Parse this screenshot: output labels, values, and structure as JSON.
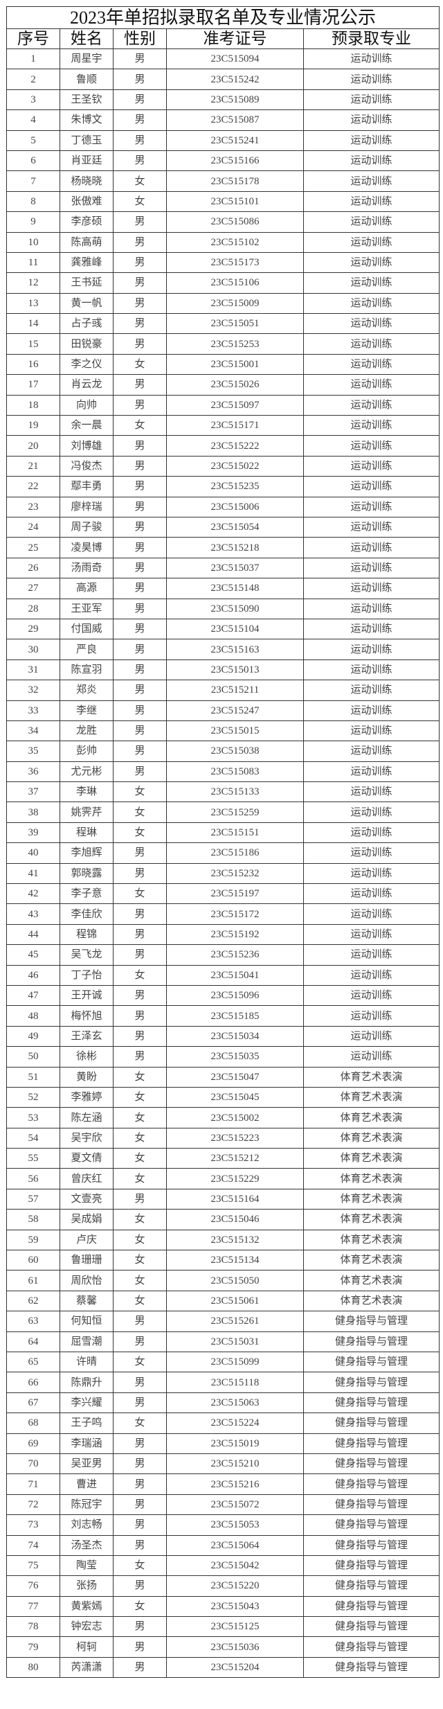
{
  "title": "2023年单招拟录取名单及专业情况公示",
  "headers": [
    "序号",
    "姓名",
    "性别",
    "准考证号",
    "预录取专业"
  ],
  "rows": [
    [
      "1",
      "周星宇",
      "男",
      "23C515094",
      "运动训练"
    ],
    [
      "2",
      "鲁顺",
      "男",
      "23C515242",
      "运动训练"
    ],
    [
      "3",
      "王圣钦",
      "男",
      "23C515089",
      "运动训练"
    ],
    [
      "4",
      "朱博文",
      "男",
      "23C515087",
      "运动训练"
    ],
    [
      "5",
      "丁德玉",
      "男",
      "23C515241",
      "运动训练"
    ],
    [
      "6",
      "肖亚廷",
      "男",
      "23C515166",
      "运动训练"
    ],
    [
      "7",
      "杨晓晓",
      "女",
      "23C515178",
      "运动训练"
    ],
    [
      "8",
      "张傲难",
      "女",
      "23C515101",
      "运动训练"
    ],
    [
      "9",
      "李彦硕",
      "男",
      "23C515086",
      "运动训练"
    ],
    [
      "10",
      "陈高萌",
      "男",
      "23C515102",
      "运动训练"
    ],
    [
      "11",
      "龚雅峰",
      "男",
      "23C515173",
      "运动训练"
    ],
    [
      "12",
      "王书延",
      "男",
      "23C515106",
      "运动训练"
    ],
    [
      "13",
      "黄一帆",
      "男",
      "23C515009",
      "运动训练"
    ],
    [
      "14",
      "占子彧",
      "男",
      "23C515051",
      "运动训练"
    ],
    [
      "15",
      "田锐豪",
      "男",
      "23C515253",
      "运动训练"
    ],
    [
      "16",
      "李之仪",
      "女",
      "23C515001",
      "运动训练"
    ],
    [
      "17",
      "肖云龙",
      "男",
      "23C515026",
      "运动训练"
    ],
    [
      "18",
      "向帅",
      "男",
      "23C515097",
      "运动训练"
    ],
    [
      "19",
      "余一晨",
      "女",
      "23C515171",
      "运动训练"
    ],
    [
      "20",
      "刘博雄",
      "男",
      "23C515222",
      "运动训练"
    ],
    [
      "21",
      "冯俊杰",
      "男",
      "23C515022",
      "运动训练"
    ],
    [
      "22",
      "鄢丰勇",
      "男",
      "23C515235",
      "运动训练"
    ],
    [
      "23",
      "廖梓瑞",
      "男",
      "23C515006",
      "运动训练"
    ],
    [
      "24",
      "周子骏",
      "男",
      "23C515054",
      "运动训练"
    ],
    [
      "25",
      "凌昊博",
      "男",
      "23C515218",
      "运动训练"
    ],
    [
      "26",
      "汤雨奇",
      "男",
      "23C515037",
      "运动训练"
    ],
    [
      "27",
      "高源",
      "男",
      "23C515148",
      "运动训练"
    ],
    [
      "28",
      "王亚军",
      "男",
      "23C515090",
      "运动训练"
    ],
    [
      "29",
      "付国威",
      "男",
      "23C515104",
      "运动训练"
    ],
    [
      "30",
      "严良",
      "男",
      "23C515163",
      "运动训练"
    ],
    [
      "31",
      "陈宣羽",
      "男",
      "23C515013",
      "运动训练"
    ],
    [
      "32",
      "郑炎",
      "男",
      "23C515211",
      "运动训练"
    ],
    [
      "33",
      "李继",
      "男",
      "23C515247",
      "运动训练"
    ],
    [
      "34",
      "龙胜",
      "男",
      "23C515015",
      "运动训练"
    ],
    [
      "35",
      "彭帅",
      "男",
      "23C515038",
      "运动训练"
    ],
    [
      "36",
      "尤元彬",
      "男",
      "23C515083",
      "运动训练"
    ],
    [
      "37",
      "李琳",
      "女",
      "23C515133",
      "运动训练"
    ],
    [
      "38",
      "姚霁芹",
      "女",
      "23C515259",
      "运动训练"
    ],
    [
      "39",
      "程琳",
      "女",
      "23C515151",
      "运动训练"
    ],
    [
      "40",
      "李旭辉",
      "男",
      "23C515186",
      "运动训练"
    ],
    [
      "41",
      "郭晓露",
      "男",
      "23C515232",
      "运动训练"
    ],
    [
      "42",
      "李子意",
      "女",
      "23C515197",
      "运动训练"
    ],
    [
      "43",
      "李佳欣",
      "男",
      "23C515172",
      "运动训练"
    ],
    [
      "44",
      "程锦",
      "男",
      "23C515192",
      "运动训练"
    ],
    [
      "45",
      "吴飞龙",
      "男",
      "23C515236",
      "运动训练"
    ],
    [
      "46",
      "丁子怡",
      "女",
      "23C515041",
      "运动训练"
    ],
    [
      "47",
      "王开诚",
      "男",
      "23C515096",
      "运动训练"
    ],
    [
      "48",
      "梅怀旭",
      "男",
      "23C515185",
      "运动训练"
    ],
    [
      "49",
      "王泽玄",
      "男",
      "23C515034",
      "运动训练"
    ],
    [
      "50",
      "徐彬",
      "男",
      "23C515035",
      "运动训练"
    ],
    [
      "51",
      "黄盼",
      "女",
      "23C515047",
      "体育艺术表演"
    ],
    [
      "52",
      "李雅婷",
      "女",
      "23C515045",
      "体育艺术表演"
    ],
    [
      "53",
      "陈左涵",
      "女",
      "23C515002",
      "体育艺术表演"
    ],
    [
      "54",
      "吴宇欣",
      "女",
      "23C515223",
      "体育艺术表演"
    ],
    [
      "55",
      "夏文倩",
      "女",
      "23C515212",
      "体育艺术表演"
    ],
    [
      "56",
      "曾庆红",
      "女",
      "23C515229",
      "体育艺术表演"
    ],
    [
      "57",
      "文壹亮",
      "男",
      "23C515164",
      "体育艺术表演"
    ],
    [
      "58",
      "吴成娟",
      "女",
      "23C515046",
      "体育艺术表演"
    ],
    [
      "59",
      "卢庆",
      "女",
      "23C515132",
      "体育艺术表演"
    ],
    [
      "60",
      "鲁珊珊",
      "女",
      "23C515134",
      "体育艺术表演"
    ],
    [
      "61",
      "周欣怡",
      "女",
      "23C515050",
      "体育艺术表演"
    ],
    [
      "62",
      "蔡馨",
      "女",
      "23C515061",
      "体育艺术表演"
    ],
    [
      "63",
      "何知恒",
      "男",
      "23C515261",
      "健身指导与管理"
    ],
    [
      "64",
      "屈雪潮",
      "男",
      "23C515031",
      "健身指导与管理"
    ],
    [
      "65",
      "许晴",
      "女",
      "23C515099",
      "健身指导与管理"
    ],
    [
      "66",
      "陈鼎升",
      "男",
      "23C515118",
      "健身指导与管理"
    ],
    [
      "67",
      "李兴耀",
      "男",
      "23C515063",
      "健身指导与管理"
    ],
    [
      "68",
      "王子鸣",
      "女",
      "23C515224",
      "健身指导与管理"
    ],
    [
      "69",
      "李瑞涵",
      "男",
      "23C515019",
      "健身指导与管理"
    ],
    [
      "70",
      "吴亚男",
      "男",
      "23C515210",
      "健身指导与管理"
    ],
    [
      "71",
      "曹进",
      "男",
      "23C515216",
      "健身指导与管理"
    ],
    [
      "72",
      "陈冠宇",
      "男",
      "23C515072",
      "健身指导与管理"
    ],
    [
      "73",
      "刘志畅",
      "男",
      "23C515053",
      "健身指导与管理"
    ],
    [
      "74",
      "汤圣杰",
      "男",
      "23C515064",
      "健身指导与管理"
    ],
    [
      "75",
      "陶莹",
      "女",
      "23C515042",
      "健身指导与管理"
    ],
    [
      "76",
      "张扬",
      "男",
      "23C515220",
      "健身指导与管理"
    ],
    [
      "77",
      "黄紫嫣",
      "女",
      "23C515043",
      "健身指导与管理"
    ],
    [
      "78",
      "钟宏志",
      "男",
      "23C515125",
      "健身指导与管理"
    ],
    [
      "79",
      "柯轲",
      "男",
      "23C515036",
      "健身指导与管理"
    ],
    [
      "80",
      "芮潇潇",
      "男",
      "23C515204",
      "健身指导与管理"
    ]
  ]
}
